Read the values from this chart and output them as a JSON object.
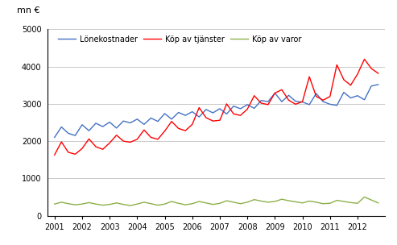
{
  "ylabel": "mn €",
  "ylim": [
    0,
    5000
  ],
  "yticks": [
    0,
    1000,
    2000,
    3000,
    4000,
    5000
  ],
  "lonekostnader": [
    2100,
    2380,
    2210,
    2150,
    2440,
    2280,
    2480,
    2390,
    2510,
    2350,
    2540,
    2490,
    2590,
    2450,
    2620,
    2530,
    2740,
    2590,
    2770,
    2690,
    2790,
    2650,
    2850,
    2760,
    2870,
    2730,
    2940,
    2870,
    2980,
    2880,
    3090,
    3060,
    3290,
    3060,
    3230,
    3070,
    3050,
    2980,
    3280,
    3060,
    2990,
    2960,
    3310,
    3160,
    3220,
    3110,
    3480,
    3520
  ],
  "kop_av_tjanster": [
    1630,
    1980,
    1700,
    1650,
    1800,
    2060,
    1850,
    1780,
    1950,
    2160,
    2000,
    1970,
    2050,
    2300,
    2100,
    2050,
    2270,
    2530,
    2340,
    2280,
    2450,
    2900,
    2630,
    2540,
    2560,
    3000,
    2730,
    2690,
    2860,
    3220,
    3020,
    2980,
    3290,
    3380,
    3100,
    2990,
    3060,
    3730,
    3200,
    3100,
    3200,
    4050,
    3650,
    3500,
    3800,
    4200,
    3950,
    3820
  ],
  "kop_av_varor": [
    310,
    360,
    320,
    290,
    310,
    350,
    310,
    280,
    300,
    340,
    300,
    270,
    310,
    360,
    320,
    280,
    310,
    380,
    330,
    290,
    320,
    380,
    340,
    300,
    330,
    400,
    360,
    320,
    360,
    430,
    390,
    360,
    380,
    440,
    400,
    370,
    340,
    390,
    360,
    320,
    330,
    410,
    380,
    350,
    330,
    500,
    420,
    340
  ],
  "line_colors": {
    "lonekostnader": "#4472C4",
    "kop_av_tjanster": "#FF0000",
    "kop_av_varor": "#8DB04A"
  },
  "legend_labels": [
    "Lönekostnader",
    "Köp av tjänster",
    "Köp av varor"
  ],
  "xtick_labels": [
    "2001",
    "2002",
    "2003",
    "2004",
    "2005",
    "2006",
    "2007",
    "2008",
    "2009",
    "2010",
    "2011",
    "2012"
  ],
  "background_color": "#ffffff",
  "grid_color": "#c0c0c0"
}
